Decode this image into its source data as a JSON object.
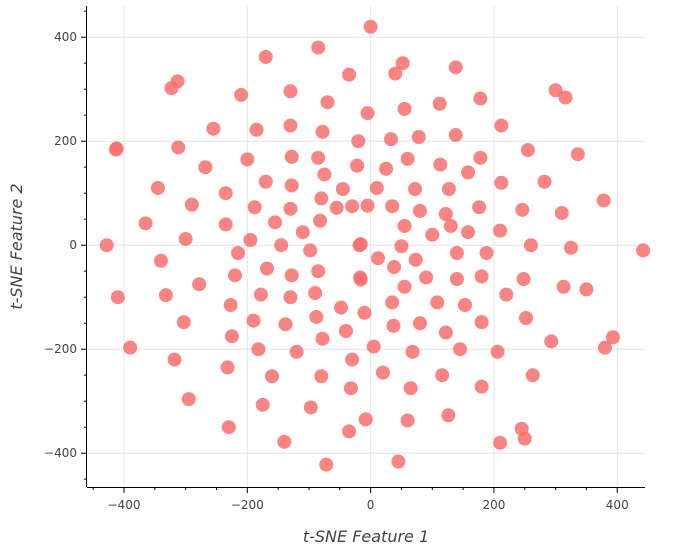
{
  "chart_data": {
    "type": "scatter",
    "title": "",
    "xlabel": "t-SNE Feature 1",
    "ylabel": "t-SNE Feature 2",
    "xlim": [
      -460,
      445
    ],
    "ylim": [
      -465,
      460
    ],
    "grid": true,
    "x_ticks": [
      -400,
      -200,
      0,
      200,
      400
    ],
    "y_ticks": [
      -400,
      -200,
      0,
      200,
      400
    ],
    "x_tick_labels": [
      "−400",
      "−200",
      "0",
      "200",
      "400"
    ],
    "y_tick_labels": [
      "−400",
      "−200",
      "0",
      "200",
      "400"
    ],
    "marker_color": "#f86f6f",
    "series": [
      {
        "points": [
          [
            0,
            420
          ],
          [
            -85,
            380
          ],
          [
            -170,
            362
          ],
          [
            52,
            350
          ],
          [
            138,
            342
          ],
          [
            -35,
            328
          ],
          [
            40,
            330
          ],
          [
            -313,
            315
          ],
          [
            -323,
            302
          ],
          [
            300,
            298
          ],
          [
            -210,
            289
          ],
          [
            -130,
            296
          ],
          [
            178,
            282
          ],
          [
            316,
            284
          ],
          [
            -70,
            275
          ],
          [
            112,
            272
          ],
          [
            55,
            262
          ],
          [
            -5,
            254
          ],
          [
            -255,
            224
          ],
          [
            -185,
            222
          ],
          [
            -130,
            230
          ],
          [
            -78,
            218
          ],
          [
            78,
            208
          ],
          [
            138,
            212
          ],
          [
            212,
            230
          ],
          [
            -20,
            200
          ],
          [
            33,
            204
          ],
          [
            -412,
            186
          ],
          [
            -413,
            184
          ],
          [
            -312,
            188
          ],
          [
            -200,
            165
          ],
          [
            -128,
            170
          ],
          [
            -85,
            168
          ],
          [
            60,
            166
          ],
          [
            113,
            155
          ],
          [
            178,
            168
          ],
          [
            255,
            183
          ],
          [
            336,
            175
          ],
          [
            -268,
            150
          ],
          [
            -22,
            153
          ],
          [
            25,
            147
          ],
          [
            -75,
            136
          ],
          [
            158,
            140
          ],
          [
            -345,
            110
          ],
          [
            -170,
            122
          ],
          [
            -128,
            115
          ],
          [
            -45,
            108
          ],
          [
            10,
            110
          ],
          [
            72,
            108
          ],
          [
            127,
            108
          ],
          [
            212,
            120
          ],
          [
            282,
            122
          ],
          [
            -235,
            100
          ],
          [
            -290,
            78
          ],
          [
            -188,
            73
          ],
          [
            -130,
            70
          ],
          [
            -80,
            90
          ],
          [
            -55,
            72
          ],
          [
            -30,
            75
          ],
          [
            -5,
            76
          ],
          [
            35,
            75
          ],
          [
            80,
            66
          ],
          [
            122,
            60
          ],
          [
            176,
            73
          ],
          [
            246,
            68
          ],
          [
            310,
            62
          ],
          [
            378,
            86
          ],
          [
            -365,
            42
          ],
          [
            -235,
            40
          ],
          [
            -155,
            44
          ],
          [
            -110,
            25
          ],
          [
            -82,
            47
          ],
          [
            55,
            37
          ],
          [
            100,
            20
          ],
          [
            130,
            37
          ],
          [
            158,
            25
          ],
          [
            210,
            28
          ],
          [
            -428,
            0
          ],
          [
            -300,
            12
          ],
          [
            -195,
            10
          ],
          [
            -145,
            0
          ],
          [
            -98,
            -10
          ],
          [
            -18,
            0
          ],
          [
            -16,
            2
          ],
          [
            50,
            -2
          ],
          [
            73,
            -28
          ],
          [
            12,
            -25
          ],
          [
            -340,
            -30
          ],
          [
            -215,
            -15
          ],
          [
            -168,
            -45
          ],
          [
            -128,
            -58
          ],
          [
            -85,
            -50
          ],
          [
            -16,
            -66
          ],
          [
            -17,
            -62
          ],
          [
            38,
            -42
          ],
          [
            90,
            -62
          ],
          [
            140,
            -15
          ],
          [
            140,
            -65
          ],
          [
            188,
            -15
          ],
          [
            260,
            0
          ],
          [
            325,
            -5
          ],
          [
            442,
            -10
          ],
          [
            -410,
            -100
          ],
          [
            -332,
            -96
          ],
          [
            -278,
            -75
          ],
          [
            -220,
            -58
          ],
          [
            -178,
            -95
          ],
          [
            -130,
            -100
          ],
          [
            -90,
            -92
          ],
          [
            -48,
            -120
          ],
          [
            55,
            -80
          ],
          [
            108,
            -110
          ],
          [
            153,
            -115
          ],
          [
            180,
            -60
          ],
          [
            220,
            -95
          ],
          [
            248,
            -65
          ],
          [
            313,
            -80
          ],
          [
            350,
            -85
          ],
          [
            -303,
            -148
          ],
          [
            -227,
            -115
          ],
          [
            -190,
            -145
          ],
          [
            -138,
            -152
          ],
          [
            -88,
            -138
          ],
          [
            -40,
            -165
          ],
          [
            -10,
            -130
          ],
          [
            35,
            -110
          ],
          [
            37,
            -155
          ],
          [
            80,
            -150
          ],
          [
            122,
            -168
          ],
          [
            180,
            -148
          ],
          [
            252,
            -140
          ],
          [
            393,
            -177
          ],
          [
            -390,
            -197
          ],
          [
            -318,
            -220
          ],
          [
            -225,
            -175
          ],
          [
            -182,
            -200
          ],
          [
            -120,
            -205
          ],
          [
            -78,
            -180
          ],
          [
            -30,
            -220
          ],
          [
            5,
            -195
          ],
          [
            68,
            -205
          ],
          [
            145,
            -200
          ],
          [
            206,
            -205
          ],
          [
            293,
            -185
          ],
          [
            380,
            -197
          ],
          [
            -232,
            -235
          ],
          [
            -160,
            -252
          ],
          [
            -80,
            -252
          ],
          [
            20,
            -245
          ],
          [
            65,
            -275
          ],
          [
            116,
            -250
          ],
          [
            180,
            -272
          ],
          [
            263,
            -250
          ],
          [
            -295,
            -296
          ],
          [
            -175,
            -307
          ],
          [
            -97,
            -312
          ],
          [
            -32,
            -275
          ],
          [
            -8,
            -335
          ],
          [
            60,
            -337
          ],
          [
            126,
            -327
          ],
          [
            -230,
            -350
          ],
          [
            -140,
            -378
          ],
          [
            -35,
            -358
          ],
          [
            210,
            -380
          ],
          [
            245,
            -353
          ],
          [
            250,
            -372
          ],
          [
            -72,
            -422
          ],
          [
            45,
            -416
          ]
        ]
      }
    ]
  }
}
